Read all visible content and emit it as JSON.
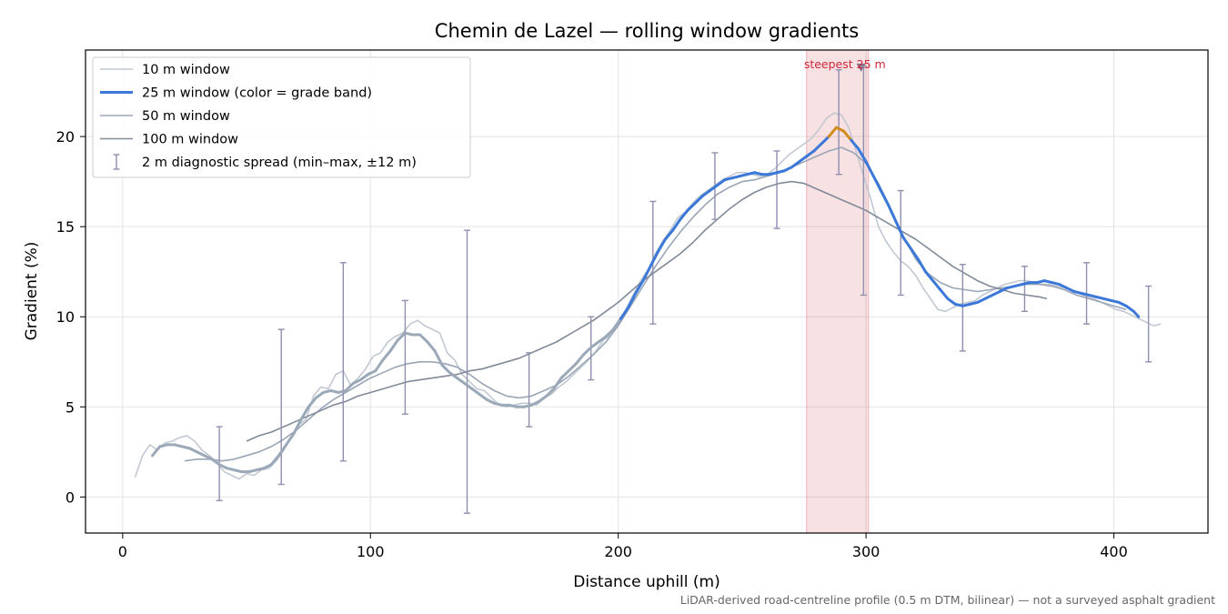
{
  "chart_data": {
    "type": "line",
    "title": "Chemin de Lazel — rolling window gradients",
    "xlabel": "Distance uphill (m)",
    "ylabel": "Gradient (%)",
    "xlim": [
      -15,
      438
    ],
    "ylim": [
      -2,
      24.8
    ],
    "xticks": [
      0,
      100,
      200,
      300,
      400
    ],
    "yticks": [
      0,
      5,
      10,
      15,
      20
    ],
    "grid": true,
    "legend_position": "top-left",
    "footnote": "LiDAR-derived road-centreline profile (0.5 m DTM, bilinear) — not a surveyed asphalt gradient",
    "highlight": {
      "x_start": 276,
      "x_end": 301,
      "label": "steepest 25 m",
      "marker_x": 298,
      "marker_y": 23.8,
      "color": "#d0283a"
    },
    "series": [
      {
        "name": "10 m window",
        "color": "#c2c8d2",
        "x": [
          5,
          8,
          11,
          14,
          17,
          20,
          23,
          26,
          29,
          32,
          35,
          38,
          41,
          44,
          47,
          50,
          53,
          56,
          59,
          62,
          65,
          68,
          71,
          74,
          77,
          80,
          83,
          86,
          89,
          92,
          95,
          98,
          101,
          104,
          107,
          110,
          113,
          116,
          119,
          122,
          125,
          128,
          131,
          134,
          137,
          140,
          143,
          146,
          149,
          152,
          155,
          158,
          161,
          164,
          167,
          170,
          173,
          176,
          179,
          182,
          185,
          188,
          191,
          194,
          197,
          200,
          203,
          206,
          209,
          212,
          215,
          218,
          221,
          224,
          227,
          230,
          233,
          236,
          239,
          242,
          245,
          248,
          251,
          254,
          257,
          260,
          263,
          266,
          269,
          272,
          275,
          278,
          281,
          284,
          287,
          290,
          293,
          296,
          299,
          302,
          305,
          308,
          311,
          314,
          317,
          320,
          323,
          326,
          329,
          332,
          335,
          338,
          341,
          344,
          347,
          350,
          353,
          356,
          359,
          362,
          365,
          368,
          371,
          374,
          377,
          380,
          383,
          386,
          389,
          392,
          395,
          398,
          401,
          404,
          407,
          410,
          413,
          416,
          419
        ],
        "values": [
          1.1,
          2.3,
          2.9,
          2.6,
          3.0,
          3.1,
          3.3,
          3.4,
          3.1,
          2.6,
          2.3,
          1.9,
          1.4,
          1.2,
          1.0,
          1.3,
          1.2,
          1.5,
          1.6,
          2.0,
          2.6,
          3.3,
          4.0,
          4.3,
          5.6,
          6.1,
          6.0,
          6.8,
          7.0,
          6.2,
          6.6,
          7.1,
          7.8,
          8.0,
          8.6,
          8.9,
          9.1,
          9.6,
          9.8,
          9.5,
          9.3,
          9.1,
          8.0,
          7.6,
          6.8,
          6.4,
          6.0,
          5.9,
          5.5,
          5.1,
          5.0,
          5.1,
          5.2,
          5.2,
          5.1,
          5.5,
          5.7,
          6.1,
          6.4,
          6.8,
          7.2,
          7.6,
          8.1,
          8.7,
          9.0,
          9.5,
          10.4,
          11.2,
          12.0,
          12.6,
          13.5,
          14.2,
          14.8,
          15.5,
          15.8,
          16.3,
          16.7,
          17.0,
          17.3,
          17.6,
          17.8,
          18.0,
          18.0,
          17.9,
          17.8,
          17.9,
          18.2,
          18.6,
          19.0,
          19.3,
          19.6,
          19.9,
          20.4,
          21.0,
          21.3,
          21.2,
          20.5,
          19.2,
          17.8,
          16.5,
          15.0,
          14.2,
          13.6,
          13.1,
          12.8,
          12.3,
          11.6,
          11.0,
          10.4,
          10.3,
          10.5,
          10.7,
          10.8,
          10.9,
          11.2,
          11.4,
          11.6,
          11.8,
          11.9,
          12.0,
          12.0,
          11.9,
          11.8,
          11.8,
          11.7,
          11.6,
          11.5,
          11.3,
          11.1,
          11.0,
          10.8,
          10.6,
          10.4,
          10.3,
          10.1,
          9.9,
          9.7,
          9.5,
          9.6
        ]
      },
      {
        "name": "25 m window (color = grade band)",
        "color": "#3b78d8",
        "grade_band_colors": {
          "gentle": "#9aa8b8",
          "steep": "#3b78d8",
          "steepest": "#d08c1c"
        },
        "x": [
          12,
          15,
          18,
          21,
          24,
          27,
          30,
          33,
          36,
          39,
          42,
          45,
          48,
          51,
          54,
          57,
          60,
          63,
          66,
          69,
          72,
          75,
          78,
          81,
          84,
          87,
          90,
          93,
          96,
          99,
          102,
          105,
          108,
          111,
          114,
          117,
          120,
          123,
          126,
          129,
          132,
          135,
          138,
          141,
          144,
          147,
          150,
          153,
          156,
          159,
          162,
          165,
          168,
          171,
          174,
          177,
          180,
          183,
          186,
          189,
          192,
          195,
          198,
          201,
          204,
          207,
          210,
          213,
          216,
          219,
          222,
          225,
          228,
          231,
          234,
          237,
          240,
          243,
          246,
          249,
          252,
          255,
          258,
          261,
          264,
          267,
          270,
          273,
          276,
          279,
          282,
          285,
          288,
          291,
          294,
          297,
          300,
          303,
          306,
          309,
          312,
          315,
          318,
          321,
          324,
          327,
          330,
          333,
          336,
          339,
          342,
          345,
          348,
          351,
          354,
          357,
          360,
          363,
          366,
          369,
          372,
          375,
          378,
          381,
          384,
          387,
          390,
          393,
          396,
          399,
          402,
          405,
          408,
          410
        ],
        "values": [
          2.3,
          2.8,
          2.9,
          2.9,
          2.8,
          2.7,
          2.5,
          2.3,
          2.1,
          1.8,
          1.6,
          1.5,
          1.4,
          1.4,
          1.5,
          1.6,
          1.8,
          2.3,
          2.9,
          3.5,
          4.3,
          5.0,
          5.5,
          5.8,
          5.9,
          5.8,
          5.9,
          6.3,
          6.5,
          6.8,
          7.0,
          7.6,
          8.1,
          8.7,
          9.1,
          9.0,
          9.0,
          8.6,
          8.1,
          7.3,
          6.9,
          6.6,
          6.3,
          6.0,
          5.7,
          5.4,
          5.2,
          5.1,
          5.1,
          5.0,
          5.0,
          5.1,
          5.3,
          5.6,
          6.0,
          6.6,
          7.0,
          7.4,
          7.9,
          8.3,
          8.6,
          8.9,
          9.3,
          9.9,
          10.5,
          11.3,
          12.0,
          12.8,
          13.6,
          14.3,
          14.8,
          15.4,
          15.9,
          16.3,
          16.7,
          17.0,
          17.3,
          17.6,
          17.7,
          17.8,
          17.9,
          18.0,
          17.9,
          17.9,
          18.0,
          18.1,
          18.3,
          18.6,
          18.9,
          19.2,
          19.6,
          20.0,
          20.5,
          20.3,
          19.8,
          19.3,
          18.6,
          17.8,
          17.0,
          16.2,
          15.3,
          14.4,
          13.8,
          13.2,
          12.5,
          12.0,
          11.5,
          11.0,
          10.7,
          10.6,
          10.7,
          10.8,
          11.0,
          11.2,
          11.4,
          11.6,
          11.7,
          11.8,
          11.9,
          11.9,
          12.0,
          11.9,
          11.8,
          11.6,
          11.4,
          11.3,
          11.2,
          11.1,
          11.0,
          10.9,
          10.8,
          10.6,
          10.3,
          10.0
        ]
      },
      {
        "name": "50 m window",
        "color": "#9aa6b6",
        "x": [
          25,
          30,
          35,
          40,
          45,
          50,
          55,
          60,
          65,
          70,
          75,
          80,
          85,
          90,
          95,
          100,
          105,
          110,
          115,
          120,
          125,
          130,
          135,
          140,
          145,
          150,
          155,
          160,
          165,
          170,
          175,
          180,
          185,
          190,
          195,
          200,
          205,
          210,
          215,
          220,
          225,
          230,
          235,
          240,
          245,
          250,
          255,
          260,
          265,
          270,
          275,
          280,
          285,
          290,
          295,
          300,
          305,
          310,
          315,
          320,
          325,
          330,
          335,
          340,
          345,
          350,
          355,
          360,
          365,
          370,
          375,
          380,
          385,
          390,
          395,
          400,
          405
        ],
        "values": [
          2.0,
          2.1,
          2.1,
          2.0,
          2.1,
          2.3,
          2.5,
          2.8,
          3.2,
          3.7,
          4.3,
          4.9,
          5.4,
          5.8,
          6.2,
          6.6,
          6.9,
          7.2,
          7.4,
          7.5,
          7.5,
          7.4,
          7.2,
          6.8,
          6.3,
          5.9,
          5.6,
          5.5,
          5.6,
          5.9,
          6.2,
          6.7,
          7.3,
          7.9,
          8.6,
          9.5,
          10.6,
          11.7,
          12.8,
          13.8,
          14.7,
          15.5,
          16.2,
          16.8,
          17.2,
          17.5,
          17.6,
          17.8,
          18.0,
          18.3,
          18.6,
          18.9,
          19.2,
          19.4,
          19.1,
          18.5,
          17.4,
          16.0,
          14.5,
          13.2,
          12.4,
          11.9,
          11.6,
          11.5,
          11.4,
          11.5,
          11.6,
          11.7,
          11.8,
          11.8,
          11.7,
          11.5,
          11.2,
          11.0,
          10.8,
          10.6,
          10.4
        ]
      },
      {
        "name": "100 m window",
        "color": "#808a99",
        "x": [
          50,
          55,
          60,
          65,
          70,
          75,
          80,
          85,
          90,
          95,
          100,
          105,
          110,
          115,
          120,
          125,
          130,
          135,
          140,
          145,
          150,
          155,
          160,
          165,
          170,
          175,
          180,
          185,
          190,
          195,
          200,
          205,
          210,
          215,
          220,
          225,
          230,
          235,
          240,
          245,
          250,
          255,
          260,
          265,
          270,
          275,
          280,
          285,
          290,
          295,
          300,
          305,
          310,
          315,
          320,
          325,
          330,
          335,
          340,
          345,
          350,
          355,
          360,
          365,
          370,
          373
        ],
        "values": [
          3.1,
          3.4,
          3.6,
          3.9,
          4.2,
          4.5,
          4.8,
          5.1,
          5.3,
          5.6,
          5.8,
          6.0,
          6.2,
          6.4,
          6.5,
          6.6,
          6.7,
          6.8,
          7.0,
          7.1,
          7.3,
          7.5,
          7.7,
          8.0,
          8.3,
          8.6,
          9.0,
          9.4,
          9.8,
          10.3,
          10.8,
          11.4,
          12.0,
          12.5,
          13.0,
          13.5,
          14.1,
          14.8,
          15.4,
          16.0,
          16.5,
          16.9,
          17.2,
          17.4,
          17.5,
          17.4,
          17.1,
          16.8,
          16.5,
          16.2,
          15.9,
          15.5,
          15.1,
          14.7,
          14.3,
          13.8,
          13.3,
          12.8,
          12.4,
          12.0,
          11.7,
          11.5,
          11.3,
          11.2,
          11.1,
          11.0
        ]
      },
      {
        "name": "2 m diagnostic spread (min–max, ±12 m)",
        "color": "#8f8fb0",
        "type": "errorbar",
        "x": [
          39,
          64,
          89,
          114,
          139,
          164,
          189,
          214,
          239,
          264,
          289,
          299,
          314,
          339,
          364,
          389,
          414
        ],
        "low": [
          -0.2,
          0.7,
          2.0,
          4.6,
          -0.9,
          3.9,
          6.5,
          9.6,
          15.4,
          14.9,
          17.9,
          11.2,
          11.2,
          8.1,
          10.3,
          9.6,
          7.5
        ],
        "high": [
          3.9,
          9.3,
          13.0,
          10.9,
          14.8,
          8.0,
          10.0,
          16.4,
          19.1,
          19.2,
          23.7,
          23.9,
          17.0,
          12.9,
          12.8,
          13.0,
          11.7
        ]
      }
    ]
  }
}
